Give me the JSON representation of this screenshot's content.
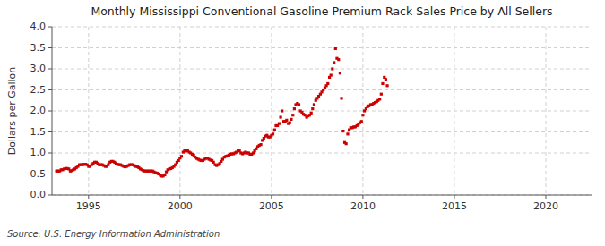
{
  "chart_data": {
    "type": "scatter",
    "title": "Monthly Mississippi Conventional Gasoline Premium Rack Sales Price by All Sellers",
    "y_label": "Dollars per Gallon",
    "annotations": [
      "Source: U.S. Energy Information Administration"
    ],
    "color": "#cc0000",
    "marker": "square",
    "grid": true,
    "xlim": [
      1993.0,
      2022.5
    ],
    "ylim": [
      0.0,
      4.0
    ],
    "xticks": [
      1995,
      2000,
      2005,
      2010,
      2015,
      2020
    ],
    "yticks": [
      {
        "value": 0.0,
        "label": "0.0"
      },
      0.5,
      {
        "value": 1.0,
        "label": "1.0"
      },
      1.5,
      {
        "value": 2.0,
        "label": "2.0"
      },
      2.5,
      {
        "value": 3.0,
        "label": "3.0"
      },
      3.5,
      {
        "value": 4.0,
        "label": "4.0"
      }
    ],
    "x": [
      1993.25,
      1993.33,
      1993.42,
      1993.5,
      1993.58,
      1993.67,
      1993.75,
      1993.83,
      1993.92,
      1994.0,
      1994.08,
      1994.17,
      1994.25,
      1994.33,
      1994.42,
      1994.5,
      1994.58,
      1994.67,
      1994.75,
      1994.83,
      1994.92,
      1995.0,
      1995.08,
      1995.17,
      1995.25,
      1995.33,
      1995.42,
      1995.5,
      1995.58,
      1995.67,
      1995.75,
      1995.83,
      1995.92,
      1996.0,
      1996.08,
      1996.17,
      1996.25,
      1996.33,
      1996.42,
      1996.5,
      1996.58,
      1996.67,
      1996.75,
      1996.83,
      1996.92,
      1997.0,
      1997.08,
      1997.17,
      1997.25,
      1997.33,
      1997.42,
      1997.5,
      1997.58,
      1997.67,
      1997.75,
      1997.83,
      1997.92,
      1998.0,
      1998.08,
      1998.17,
      1998.25,
      1998.33,
      1998.42,
      1998.5,
      1998.58,
      1998.67,
      1998.75,
      1998.83,
      1998.92,
      1999.0,
      1999.08,
      1999.17,
      1999.25,
      1999.33,
      1999.42,
      1999.5,
      1999.58,
      1999.67,
      1999.75,
      1999.83,
      1999.92,
      2000.0,
      2000.08,
      2000.17,
      2000.25,
      2000.33,
      2000.42,
      2000.5,
      2000.58,
      2000.67,
      2000.75,
      2000.83,
      2000.92,
      2001.0,
      2001.08,
      2001.17,
      2001.25,
      2001.33,
      2001.42,
      2001.5,
      2001.58,
      2001.67,
      2001.75,
      2001.83,
      2001.92,
      2002.0,
      2002.08,
      2002.17,
      2002.25,
      2002.33,
      2002.42,
      2002.5,
      2002.58,
      2002.67,
      2002.75,
      2002.83,
      2002.92,
      2003.0,
      2003.08,
      2003.17,
      2003.25,
      2003.33,
      2003.42,
      2003.5,
      2003.58,
      2003.67,
      2003.75,
      2003.83,
      2003.92,
      2004.0,
      2004.08,
      2004.17,
      2004.25,
      2004.33,
      2004.42,
      2004.5,
      2004.58,
      2004.67,
      2004.75,
      2004.83,
      2004.92,
      2005.0,
      2005.08,
      2005.17,
      2005.25,
      2005.33,
      2005.42,
      2005.5,
      2005.58,
      2005.67,
      2005.75,
      2005.83,
      2005.92,
      2006.0,
      2006.08,
      2006.17,
      2006.25,
      2006.33,
      2006.42,
      2006.5,
      2006.58,
      2006.67,
      2006.75,
      2006.83,
      2006.92,
      2007.0,
      2007.08,
      2007.17,
      2007.25,
      2007.33,
      2007.42,
      2007.5,
      2007.58,
      2007.67,
      2007.75,
      2007.83,
      2007.92,
      2008.0,
      2008.08,
      2008.17,
      2008.25,
      2008.33,
      2008.42,
      2008.5,
      2008.58,
      2008.67,
      2008.75,
      2008.83,
      2008.92,
      2009.0,
      2009.08,
      2009.17,
      2009.25,
      2009.33,
      2009.42,
      2009.5,
      2009.58,
      2009.67,
      2009.75,
      2009.83,
      2009.92,
      2010.0,
      2010.08,
      2010.17,
      2010.25,
      2010.33,
      2010.42,
      2010.5,
      2010.58,
      2010.67,
      2010.75,
      2010.83,
      2010.92,
      2011.0,
      2011.08,
      2011.17,
      2011.25,
      2011.33
    ],
    "values": [
      0.57,
      0.57,
      0.57,
      0.6,
      0.6,
      0.62,
      0.63,
      0.63,
      0.62,
      0.57,
      0.58,
      0.6,
      0.62,
      0.65,
      0.68,
      0.72,
      0.72,
      0.72,
      0.73,
      0.73,
      0.72,
      0.68,
      0.68,
      0.72,
      0.75,
      0.78,
      0.78,
      0.75,
      0.72,
      0.72,
      0.72,
      0.7,
      0.68,
      0.68,
      0.72,
      0.78,
      0.8,
      0.8,
      0.78,
      0.75,
      0.73,
      0.72,
      0.72,
      0.7,
      0.68,
      0.67,
      0.68,
      0.7,
      0.72,
      0.72,
      0.72,
      0.7,
      0.68,
      0.67,
      0.65,
      0.62,
      0.6,
      0.58,
      0.57,
      0.57,
      0.57,
      0.57,
      0.57,
      0.57,
      0.55,
      0.53,
      0.52,
      0.5,
      0.47,
      0.45,
      0.45,
      0.48,
      0.55,
      0.6,
      0.62,
      0.63,
      0.65,
      0.68,
      0.72,
      0.78,
      0.82,
      0.88,
      0.92,
      1.02,
      1.05,
      1.05,
      1.05,
      1.02,
      1.0,
      0.97,
      0.95,
      0.9,
      0.87,
      0.85,
      0.83,
      0.82,
      0.82,
      0.85,
      0.87,
      0.88,
      0.85,
      0.83,
      0.82,
      0.78,
      0.72,
      0.7,
      0.72,
      0.75,
      0.8,
      0.85,
      0.9,
      0.92,
      0.93,
      0.95,
      0.97,
      0.98,
      0.98,
      1.0,
      1.02,
      1.05,
      1.05,
      1.0,
      0.98,
      1.0,
      1.02,
      1.0,
      1.0,
      0.97,
      0.97,
      1.0,
      1.05,
      1.1,
      1.15,
      1.18,
      1.2,
      1.3,
      1.35,
      1.4,
      1.42,
      1.38,
      1.38,
      1.42,
      1.45,
      1.55,
      1.65,
      1.65,
      1.7,
      1.85,
      2.0,
      1.75,
      1.75,
      1.78,
      1.7,
      1.72,
      1.8,
      1.9,
      2.05,
      2.15,
      2.18,
      2.15,
      2.0,
      1.97,
      1.92,
      1.9,
      1.85,
      1.88,
      1.9,
      1.95,
      2.05,
      2.15,
      2.25,
      2.3,
      2.35,
      2.4,
      2.45,
      2.5,
      2.55,
      2.6,
      2.65,
      2.8,
      2.85,
      3.0,
      3.15,
      3.48,
      3.25,
      3.22,
      2.9,
      2.3,
      1.52,
      1.25,
      1.22,
      1.45,
      1.55,
      1.6,
      1.6,
      1.62,
      1.62,
      1.65,
      1.68,
      1.72,
      1.75,
      1.9,
      2.0,
      2.05,
      2.1,
      2.12,
      2.15,
      2.15,
      2.18,
      2.2,
      2.22,
      2.25,
      2.28,
      2.4,
      2.65,
      2.8,
      2.75,
      2.6
    ]
  }
}
